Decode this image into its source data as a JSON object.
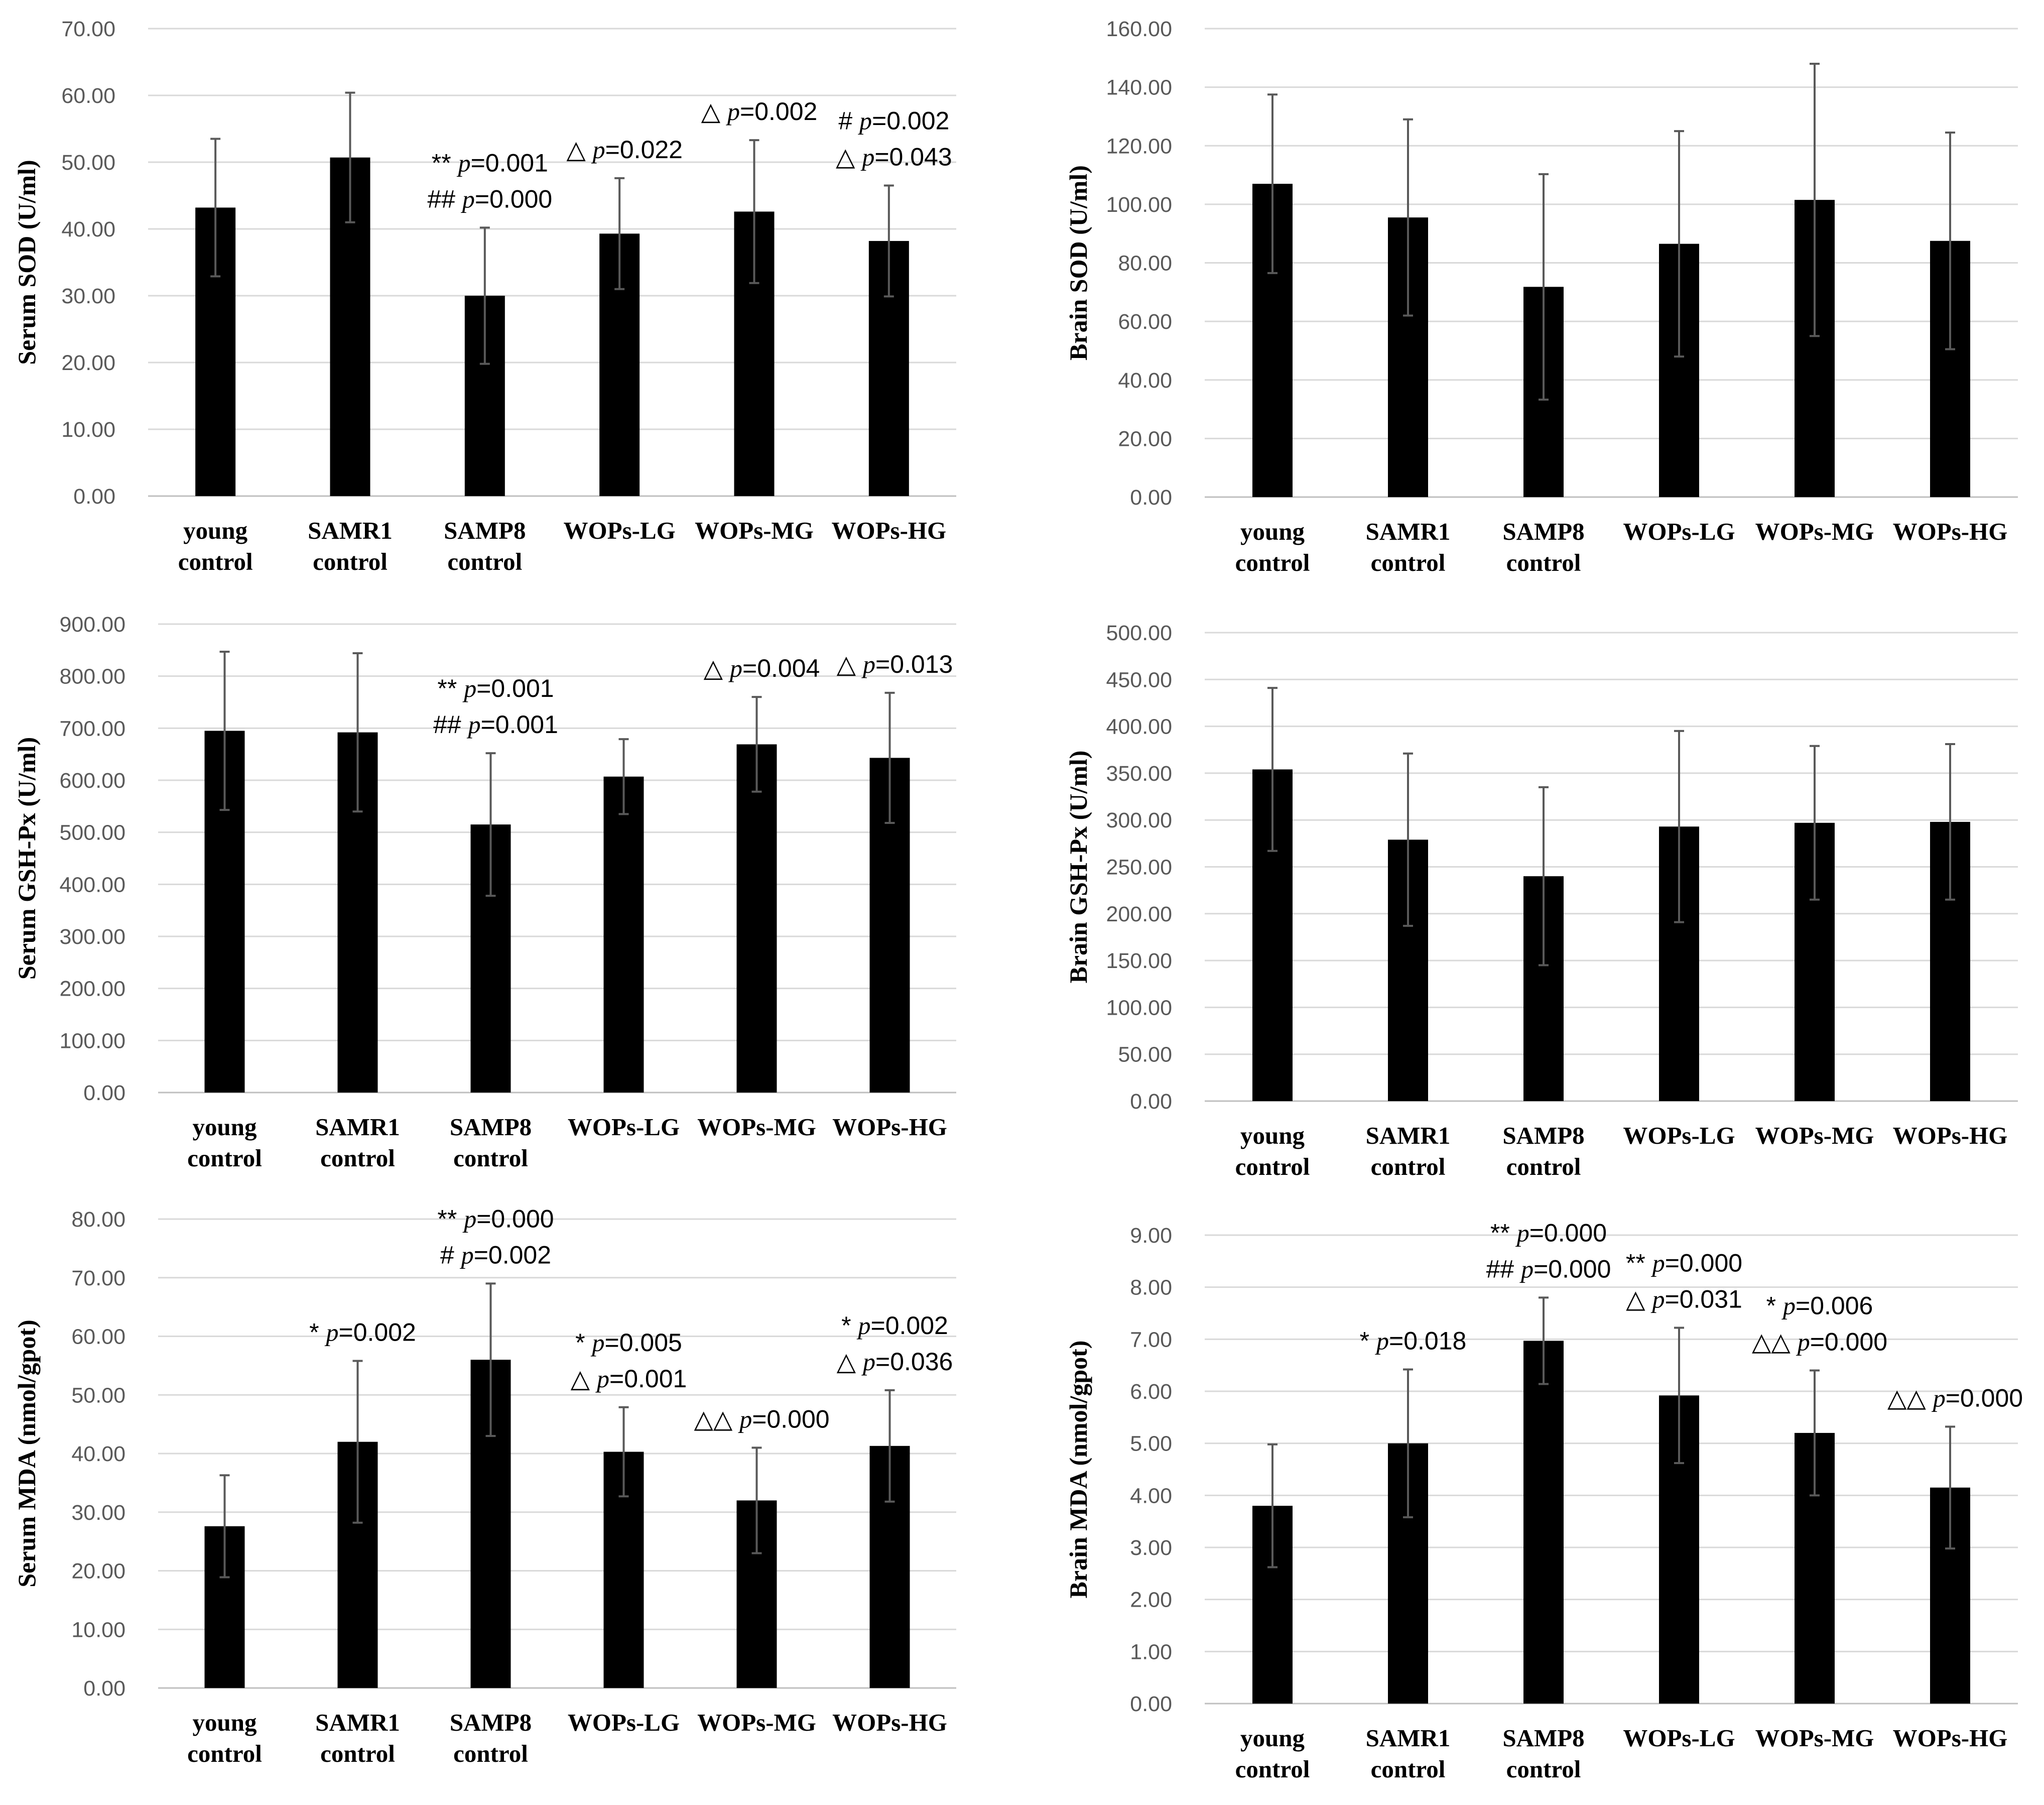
{
  "chart_data": [
    {
      "type": "bar",
      "title": "",
      "xlabel": "",
      "ylabel": "Serum SOD (U/ml)",
      "ylim": [
        0,
        70
      ],
      "ytick_step": 10,
      "ytick_labels": [
        "0.00",
        "10.00",
        "20.00",
        "30.00",
        "40.00",
        "50.00",
        "60.00",
        "70.00"
      ],
      "categories": [
        "young\ncontrol",
        "SAMR1\ncontrol",
        "SAMP8\ncontrol",
        "WOPs-LG",
        "WOPs-MG",
        "WOPs-HG"
      ],
      "values": [
        43.2,
        50.7,
        30.0,
        39.3,
        42.6,
        38.2
      ],
      "errors": [
        10.3,
        9.7,
        10.2,
        8.3,
        10.7,
        8.3
      ],
      "annotations": [
        {
          "category": 2,
          "lines": [
            {
              "sym": "**",
              "p": "=0.001"
            },
            {
              "sym": "##",
              "p": "=0.000"
            }
          ]
        },
        {
          "category": 3,
          "lines": [
            {
              "sym": "△",
              "p": "=0.022"
            }
          ]
        },
        {
          "category": 4,
          "lines": [
            {
              "sym": "△",
              "p": "=0.002"
            }
          ]
        },
        {
          "category": 5,
          "lines": [
            {
              "sym": "#",
              "p": "=0.002"
            },
            {
              "sym": "△",
              "p": "=0.043"
            }
          ]
        }
      ]
    },
    {
      "type": "bar",
      "title": "",
      "xlabel": "",
      "ylabel": "Brain SOD (U/ml)",
      "ylim": [
        0,
        160
      ],
      "ytick_step": 20,
      "ytick_labels": [
        "0.00",
        "20.00",
        "40.00",
        "60.00",
        "80.00",
        "100.00",
        "120.00",
        "140.00",
        "160.00"
      ],
      "categories": [
        "young\ncontrol",
        "SAMR1\ncontrol",
        "SAMP8\ncontrol",
        "WOPs-LG",
        "WOPs-MG",
        "WOPs-HG"
      ],
      "values": [
        107.0,
        95.5,
        71.8,
        86.5,
        101.5,
        87.5
      ],
      "errors": [
        30.5,
        33.5,
        38.5,
        38.5,
        46.5,
        37.0
      ],
      "annotations": []
    },
    {
      "type": "bar",
      "title": "",
      "xlabel": "",
      "ylabel": "Serum GSH-Px (U/ml)",
      "ylim": [
        0,
        900
      ],
      "ytick_step": 100,
      "ytick_labels": [
        "0.00",
        "100.00",
        "200.00",
        "300.00",
        "400.00",
        "500.00",
        "600.00",
        "700.00",
        "800.00",
        "900.00"
      ],
      "categories": [
        "young\ncontrol",
        "SAMR1\ncontrol",
        "SAMP8\ncontrol",
        "WOPs-LG",
        "WOPs-MG",
        "WOPs-HG"
      ],
      "values": [
        695,
        692,
        515,
        607,
        669,
        643
      ],
      "errors": [
        152,
        152,
        137,
        72,
        91,
        125
      ],
      "annotations": [
        {
          "category": 2,
          "lines": [
            {
              "sym": "**",
              "p": "=0.001"
            },
            {
              "sym": "##",
              "p": "=0.001"
            }
          ]
        },
        {
          "category": 4,
          "lines": [
            {
              "sym": "△",
              "p": "=0.004"
            }
          ]
        },
        {
          "category": 5,
          "lines": [
            {
              "sym": "△",
              "p": "=0.013"
            }
          ]
        }
      ]
    },
    {
      "type": "bar",
      "title": "",
      "xlabel": "",
      "ylabel": "Brain GSH-Px (U/ml)",
      "ylim": [
        0,
        500
      ],
      "ytick_step": 50,
      "ytick_labels": [
        "0.00",
        "50.00",
        "100.00",
        "150.00",
        "200.00",
        "250.00",
        "300.00",
        "350.00",
        "400.00",
        "450.00",
        "500.00"
      ],
      "categories": [
        "young\ncontrol",
        "SAMR1\ncontrol",
        "SAMP8\ncontrol",
        "WOPs-LG",
        "WOPs-MG",
        "WOPs-HG"
      ],
      "values": [
        354,
        279,
        240,
        293,
        297,
        298
      ],
      "errors": [
        87,
        92,
        95,
        102,
        82,
        83
      ],
      "annotations": []
    },
    {
      "type": "bar",
      "title": "",
      "xlabel": "",
      "ylabel": "Serum MDA (nmol/gpot)",
      "ylim": [
        0,
        80
      ],
      "ytick_step": 10,
      "ytick_labels": [
        "0.00",
        "10.00",
        "20.00",
        "30.00",
        "40.00",
        "50.00",
        "60.00",
        "70.00",
        "80.00"
      ],
      "categories": [
        "young\ncontrol",
        "SAMR1\ncontrol",
        "SAMP8\ncontrol",
        "WOPs-LG",
        "WOPs-MG",
        "WOPs-HG"
      ],
      "values": [
        27.6,
        42.0,
        56.0,
        40.3,
        32.0,
        41.3
      ],
      "errors": [
        8.7,
        13.8,
        13.0,
        7.6,
        9.0,
        9.5
      ],
      "annotations": [
        {
          "category": 1,
          "lines": [
            {
              "sym": "*",
              "p": "=0.002"
            }
          ]
        },
        {
          "category": 2,
          "lines": [
            {
              "sym": "**",
              "p": "=0.000"
            },
            {
              "sym": "#",
              "p": "=0.002"
            }
          ]
        },
        {
          "category": 3,
          "lines": [
            {
              "sym": "*",
              "p": "=0.005"
            },
            {
              "sym": "△",
              "p": "=0.001"
            }
          ]
        },
        {
          "category": 4,
          "lines": [
            {
              "sym": "△△",
              "p": "=0.000"
            }
          ]
        },
        {
          "category": 5,
          "lines": [
            {
              "sym": "*",
              "p": "=0.002"
            },
            {
              "sym": "△",
              "p": "=0.036"
            }
          ]
        }
      ]
    },
    {
      "type": "bar",
      "title": "",
      "xlabel": "",
      "ylabel": "Brain MDA (nmol/gpot)",
      "ylim": [
        0,
        9
      ],
      "ytick_step": 1,
      "ytick_labels": [
        "0.00",
        "1.00",
        "2.00",
        "3.00",
        "4.00",
        "5.00",
        "6.00",
        "7.00",
        "8.00",
        "9.00"
      ],
      "categories": [
        "young\ncontrol",
        "SAMR1\ncontrol",
        "SAMP8\ncontrol",
        "WOPs-LG",
        "WOPs-MG",
        "WOPs-HG"
      ],
      "values": [
        3.8,
        5.0,
        6.97,
        5.92,
        5.2,
        4.15
      ],
      "errors": [
        1.18,
        1.42,
        0.83,
        1.3,
        1.2,
        1.17
      ],
      "annotations": [
        {
          "category": 1,
          "lines": [
            {
              "sym": "*",
              "p": "=0.018"
            }
          ]
        },
        {
          "category": 2,
          "lines": [
            {
              "sym": "**",
              "p": "=0.000"
            },
            {
              "sym": "##",
              "p": "=0.000"
            }
          ]
        },
        {
          "category": 3,
          "lines": [
            {
              "sym": "**",
              "p": "=0.000"
            },
            {
              "sym": "△",
              "p": "=0.031"
            }
          ]
        },
        {
          "category": 4,
          "lines": [
            {
              "sym": "*",
              "p": "=0.006"
            },
            {
              "sym": "△△",
              "p": "=0.000"
            }
          ]
        },
        {
          "category": 5,
          "lines": [
            {
              "sym": "△△",
              "p": "=0.000"
            }
          ]
        }
      ]
    }
  ]
}
